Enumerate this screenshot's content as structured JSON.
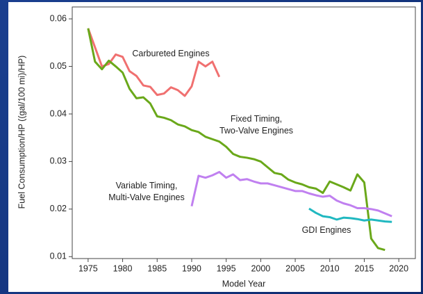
{
  "chart_data": {
    "type": "line",
    "x_label": "Model Year",
    "y_label": "Fuel Consumption/HP ((gal/100 mi)/HP)",
    "xlim": [
      1972.7,
      2022.4
    ],
    "xticks": [
      1975,
      1980,
      1985,
      1990,
      1995,
      2000,
      2005,
      2010,
      2015,
      2020
    ],
    "ylim": [
      0.0096,
      0.0625
    ],
    "yticks": [
      0.01,
      0.02,
      0.03,
      0.04,
      0.05,
      0.06
    ],
    "grid": false,
    "series": [
      {
        "name": "Carbureted Engines",
        "color": "#f07070",
        "x": [
          1975,
          1976,
          1977,
          1978,
          1979,
          1980,
          1981,
          1982,
          1983,
          1984,
          1985,
          1986,
          1987,
          1988,
          1989,
          1990,
          1991,
          1992,
          1993,
          1994
        ],
        "values": [
          0.058,
          0.054,
          0.05,
          0.0505,
          0.0525,
          0.052,
          0.049,
          0.048,
          0.046,
          0.0457,
          0.044,
          0.0443,
          0.0456,
          0.045,
          0.0438,
          0.0458,
          0.051,
          0.05,
          0.051,
          0.0478
        ]
      },
      {
        "name": "Fixed Timing,\nTwo-Valve Engines",
        "color": "#6aa81a",
        "x": [
          1975,
          1976,
          1977,
          1978,
          1979,
          1980,
          1981,
          1982,
          1983,
          1984,
          1985,
          1986,
          1987,
          1988,
          1989,
          1990,
          1991,
          1992,
          1993,
          1994,
          1995,
          1996,
          1997,
          1998,
          1999,
          2000,
          2001,
          2002,
          2003,
          2004,
          2005,
          2006,
          2007,
          2008,
          2009,
          2010,
          2011,
          2012,
          2013,
          2014,
          2015,
          2016,
          2017,
          2018
        ],
        "values": [
          0.058,
          0.051,
          0.0494,
          0.0512,
          0.05,
          0.0487,
          0.0453,
          0.0433,
          0.0435,
          0.0422,
          0.0395,
          0.0392,
          0.0387,
          0.0378,
          0.0374,
          0.0366,
          0.0362,
          0.0352,
          0.0347,
          0.0342,
          0.0331,
          0.0316,
          0.031,
          0.0308,
          0.0305,
          0.03,
          0.0288,
          0.0276,
          0.0273,
          0.0262,
          0.0256,
          0.0252,
          0.0246,
          0.0243,
          0.0234,
          0.0258,
          0.0252,
          0.0246,
          0.0239,
          0.0273,
          0.0256,
          0.0138,
          0.0118,
          0.0114
        ]
      },
      {
        "name": "Variable Timing,\nMulti-Valve Engines",
        "color": "#c080f0",
        "x": [
          1990,
          1991,
          1992,
          1993,
          1994,
          1995,
          1996,
          1997,
          1998,
          1999,
          2000,
          2001,
          2002,
          2003,
          2004,
          2005,
          2006,
          2007,
          2008,
          2009,
          2010,
          2011,
          2012,
          2013,
          2014,
          2015,
          2016,
          2017,
          2018,
          2019
        ],
        "values": [
          0.0206,
          0.027,
          0.0266,
          0.0271,
          0.0278,
          0.0266,
          0.0273,
          0.0261,
          0.0263,
          0.0258,
          0.0254,
          0.0254,
          0.025,
          0.0246,
          0.0242,
          0.0238,
          0.0238,
          0.0233,
          0.0229,
          0.0226,
          0.0228,
          0.0218,
          0.0212,
          0.0208,
          0.0202,
          0.0202,
          0.02,
          0.0197,
          0.0191,
          0.0185
        ]
      },
      {
        "name": "GDI Engines",
        "color": "#20b8c0",
        "x": [
          2007,
          2008,
          2009,
          2010,
          2011,
          2012,
          2013,
          2014,
          2015,
          2016,
          2017,
          2018,
          2019
        ],
        "values": [
          0.0201,
          0.0192,
          0.0185,
          0.0183,
          0.0178,
          0.0182,
          0.0181,
          0.0179,
          0.0176,
          0.0178,
          0.0176,
          0.0174,
          0.0173
        ]
      }
    ]
  }
}
